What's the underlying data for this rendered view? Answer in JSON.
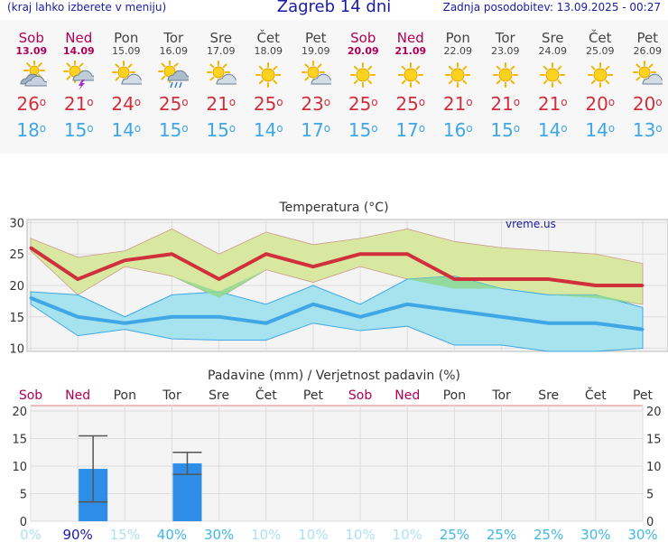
{
  "header": {
    "menu_note": "(kraj lahko izberete v meniju)",
    "title": "Zagreb 14 dni",
    "updated": "Zadnja posodobitev: 13.09.2025 - 00:27"
  },
  "days": [
    {
      "name": "Sob",
      "date": "13.09",
      "weekend": true,
      "icon": "partly-cloudy-icon",
      "max": "26",
      "min": "18"
    },
    {
      "name": "Ned",
      "date": "14.09",
      "weekend": true,
      "icon": "thunderstorm-sun-icon",
      "max": "21",
      "min": "15"
    },
    {
      "name": "Pon",
      "date": "15.09",
      "weekend": false,
      "icon": "sun-cloud-icon",
      "max": "24",
      "min": "14"
    },
    {
      "name": "Tor",
      "date": "16.09",
      "weekend": false,
      "icon": "sun-rain-icon",
      "max": "25",
      "min": "15"
    },
    {
      "name": "Sre",
      "date": "17.09",
      "weekend": false,
      "icon": "sun-cloud-icon",
      "max": "21",
      "min": "15"
    },
    {
      "name": "Čet",
      "date": "18.09",
      "weekend": false,
      "icon": "sun-icon",
      "max": "25",
      "min": "14"
    },
    {
      "name": "Pet",
      "date": "19.09",
      "weekend": false,
      "icon": "sun-cloud-icon",
      "max": "23",
      "min": "17"
    },
    {
      "name": "Sob",
      "date": "20.09",
      "weekend": true,
      "icon": "sun-icon",
      "max": "25",
      "min": "15"
    },
    {
      "name": "Ned",
      "date": "21.09",
      "weekend": true,
      "icon": "sun-icon",
      "max": "25",
      "min": "17"
    },
    {
      "name": "Pon",
      "date": "22.09",
      "weekend": false,
      "icon": "sun-icon",
      "max": "21",
      "min": "16"
    },
    {
      "name": "Tor",
      "date": "23.09",
      "weekend": false,
      "icon": "sun-icon",
      "max": "21",
      "min": "15"
    },
    {
      "name": "Sre",
      "date": "24.09",
      "weekend": false,
      "icon": "sun-icon",
      "max": "21",
      "min": "14"
    },
    {
      "name": "Čet",
      "date": "25.09",
      "weekend": false,
      "icon": "sun-icon",
      "max": "20",
      "min": "14"
    },
    {
      "name": "Pet",
      "date": "26.09",
      "weekend": false,
      "icon": "sun-cloud-icon",
      "max": "20",
      "min": "13"
    }
  ],
  "degree_symbol": "o",
  "colors": {
    "title_blue": "#1a1aa6",
    "weekend": "#b00055",
    "max_red": "#d0303c",
    "min_blue": "#3fa7e6",
    "max_band": "#d9e8a0",
    "min_band": "#a6e3ef",
    "overlap_green": "#8fd88f",
    "precip_bar": "#2e8de6"
  },
  "chart_data": [
    {
      "type": "line",
      "title": "Temperatura (°C)",
      "watermark": "vreme.us",
      "ylim": [
        9.5,
        30.5
      ],
      "yticks": [
        10,
        15,
        20,
        25,
        30
      ],
      "series": [
        {
          "values": [
            26,
            21,
            24,
            25,
            21,
            25,
            23,
            25,
            25,
            21,
            21,
            21,
            20,
            20
          ]
        },
        {
          "values": [
            18,
            15,
            14,
            15,
            15,
            14,
            17,
            15,
            17,
            16,
            15,
            14,
            14,
            13
          ]
        }
      ],
      "max_range": {
        "upper": [
          27.5,
          24.5,
          25.5,
          29,
          25,
          28.5,
          26.5,
          27.5,
          29,
          27,
          26,
          25.5,
          25,
          23.5
        ],
        "lower": [
          25.5,
          18.5,
          23,
          21.5,
          18,
          22.5,
          20.5,
          23,
          21,
          19.5,
          19.5,
          18.5,
          18,
          17
        ]
      },
      "min_range": {
        "upper": [
          19,
          18.5,
          15,
          18.5,
          19,
          17,
          20,
          17,
          21,
          21.5,
          19.5,
          18.5,
          18.5,
          16.5
        ],
        "lower": [
          17,
          12,
          13,
          11.5,
          11.3,
          11.3,
          14,
          12.8,
          13.5,
          10.5,
          10.5,
          9.5,
          9.5,
          10
        ]
      }
    },
    {
      "type": "bar",
      "title": "Padavine (mm) / Verjetnost padavin (%)",
      "ylim": [
        0,
        20
      ],
      "yticks": [
        0,
        5,
        10,
        15,
        20
      ],
      "categories": [
        "Sob",
        "Ned",
        "Pon",
        "Tor",
        "Sre",
        "Čet",
        "Pet",
        "Sob",
        "Ned",
        "Pon",
        "Tor",
        "Sre",
        "Čet",
        "Pet"
      ],
      "values": [
        0,
        9.5,
        0,
        10.5,
        0,
        0,
        0,
        0,
        0,
        0,
        0,
        0,
        0,
        0
      ],
      "error_high": [
        null,
        15.5,
        null,
        12.5,
        null,
        null,
        null,
        null,
        null,
        null,
        null,
        null,
        null,
        null
      ],
      "error_low": [
        null,
        3.5,
        null,
        8.5,
        null,
        null,
        null,
        null,
        null,
        null,
        null,
        null,
        null,
        null
      ],
      "probability": [
        "0%",
        "90%",
        "15%",
        "40%",
        "30%",
        "10%",
        "10%",
        "10%",
        "10%",
        "25%",
        "25%",
        "25%",
        "30%",
        "30%"
      ]
    }
  ]
}
